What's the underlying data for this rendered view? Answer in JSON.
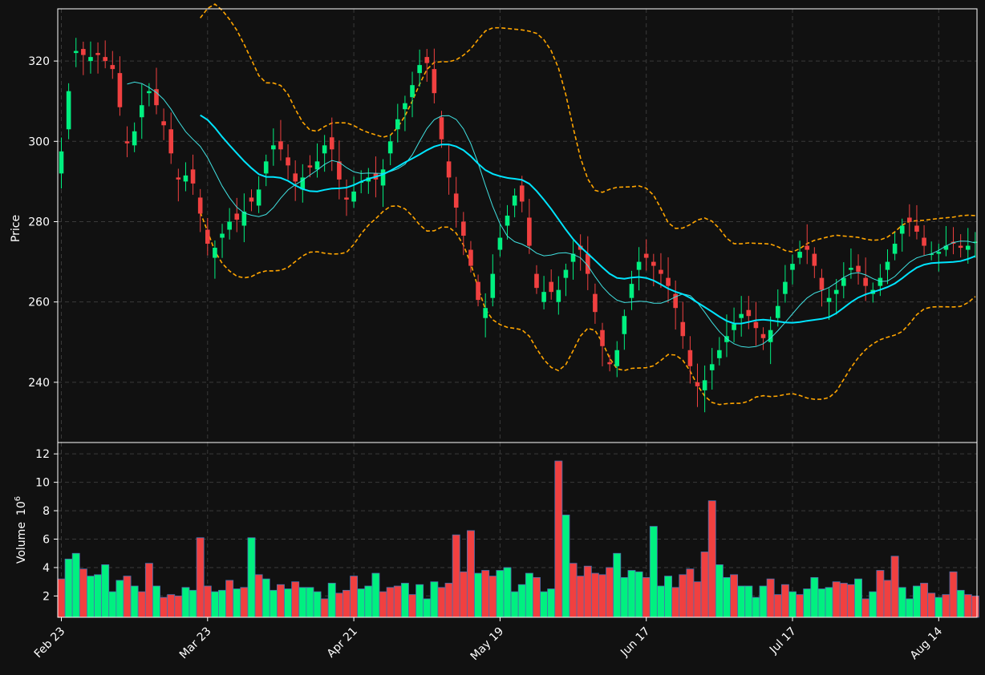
{
  "colors": {
    "background": "#111111",
    "up": "#00f080",
    "down": "#f04040",
    "volume_edge": "#4a6fae",
    "ma_fast": "#40e0e0",
    "ma_slow": "#00e5ff",
    "bands": "#ffa500",
    "grid": "#3a3a3a"
  },
  "chart_data": [
    {
      "type": "candlestick",
      "ylabel": "Price",
      "ylim": [
        225,
        333
      ],
      "y_ticks": [
        "240",
        "260",
        "280",
        "300",
        "320"
      ],
      "x_ticks": [
        "Feb 23",
        "Mar 23",
        "Apr 21",
        "May 19",
        "Jun 17",
        "Jul 17",
        "Aug 14"
      ],
      "x_tick_indices": [
        0,
        20,
        40,
        60,
        80,
        100,
        120
      ],
      "bar_count": 126,
      "grid": true,
      "overlays": [
        "moving average (fast)",
        "moving average (20)",
        "upper band",
        "lower band"
      ],
      "price_path": [
        [
          0,
          292
        ],
        [
          2,
          303
        ],
        [
          4,
          322
        ],
        [
          6,
          323
        ],
        [
          8,
          320
        ],
        [
          10,
          322
        ],
        [
          12,
          321
        ],
        [
          14,
          319
        ],
        [
          16,
          317
        ],
        [
          18,
          300
        ],
        [
          20,
          299
        ],
        [
          22,
          306
        ],
        [
          24,
          312
        ],
        [
          26,
          313
        ],
        [
          28,
          305
        ],
        [
          30,
          303
        ],
        [
          32,
          291
        ],
        [
          34,
          290
        ],
        [
          36,
          293
        ],
        [
          38,
          286
        ],
        [
          40,
          278
        ],
        [
          42,
          271
        ],
        [
          44,
          276
        ],
        [
          46,
          278
        ],
        [
          48,
          282
        ],
        [
          50,
          279
        ],
        [
          52,
          286
        ],
        [
          54,
          284
        ],
        [
          56,
          292
        ],
        [
          58,
          298
        ],
        [
          60,
          300
        ],
        [
          62,
          296
        ],
        [
          64,
          292
        ],
        [
          66,
          288
        ],
        [
          68,
          294
        ],
        [
          70,
          293
        ],
        [
          72,
          297
        ],
        [
          74,
          301
        ],
        [
          76,
          295
        ],
        [
          78,
          286
        ],
        [
          80,
          285
        ],
        [
          82,
          290
        ],
        [
          84,
          290
        ],
        [
          86,
          292
        ],
        [
          88,
          289
        ],
        [
          90,
          297
        ],
        [
          92,
          303
        ],
        [
          94,
          308
        ],
        [
          96,
          311
        ],
        [
          98,
          317
        ],
        [
          100,
          321
        ],
        [
          102,
          318
        ],
        [
          104,
          306
        ],
        [
          106,
          295
        ],
        [
          108,
          287
        ],
        [
          110,
          280
        ],
        [
          112,
          273
        ],
        [
          114,
          265
        ],
        [
          116,
          256
        ],
        [
          118,
          261
        ],
        [
          120,
          273
        ],
        [
          122,
          279
        ],
        [
          124,
          284
        ],
        [
          126,
          289
        ],
        [
          128,
          281
        ],
        [
          130,
          267
        ],
        [
          132,
          260
        ],
        [
          134,
          265
        ],
        [
          136,
          260
        ],
        [
          138,
          266
        ],
        [
          140,
          270
        ],
        [
          142,
          274
        ],
        [
          144,
          272
        ],
        [
          146,
          262
        ],
        [
          148,
          253
        ],
        [
          150,
          245
        ],
        [
          152,
          244
        ],
        [
          154,
          252
        ],
        [
          156,
          261
        ],
        [
          158,
          268
        ],
        [
          160,
          272
        ],
        [
          162,
          270
        ],
        [
          164,
          268
        ],
        [
          166,
          266
        ],
        [
          168,
          262
        ],
        [
          170,
          255
        ],
        [
          172,
          248
        ],
        [
          174,
          240
        ],
        [
          176,
          238
        ],
        [
          178,
          243
        ],
        [
          180,
          246
        ],
        [
          182,
          250
        ],
        [
          184,
          253
        ],
        [
          186,
          256
        ],
        [
          188,
          258
        ],
        [
          190,
          255
        ],
        [
          192,
          252
        ],
        [
          194,
          250
        ],
        [
          196,
          256
        ],
        [
          198,
          262
        ],
        [
          200,
          268
        ],
        [
          202,
          271
        ],
        [
          204,
          274
        ],
        [
          206,
          272
        ],
        [
          208,
          266
        ],
        [
          210,
          260
        ],
        [
          212,
          262
        ],
        [
          214,
          264
        ],
        [
          216,
          268
        ],
        [
          218,
          269
        ],
        [
          220,
          266
        ],
        [
          222,
          262
        ],
        [
          224,
          264
        ],
        [
          226,
          268
        ],
        [
          228,
          272
        ],
        [
          230,
          277
        ],
        [
          232,
          281
        ],
        [
          234,
          279
        ],
        [
          236,
          276
        ],
        [
          238,
          272
        ],
        [
          240,
          272
        ],
        [
          242,
          273
        ],
        [
          244,
          275
        ],
        [
          246,
          274
        ],
        [
          248,
          273
        ],
        [
          250,
          275
        ]
      ]
    },
    {
      "type": "bar",
      "ylabel": "Volume",
      "ylabel_exponent": "10",
      "ylabel_exponent_power": "6",
      "ylim": [
        0.5,
        12.8
      ],
      "y_ticks": [
        "2",
        "4",
        "6",
        "8",
        "10",
        "12"
      ],
      "x_ticks": [
        "Feb 23",
        "Mar 23",
        "Apr 21",
        "May 19",
        "Jun 17",
        "Jul 17",
        "Aug 14"
      ],
      "grid": true,
      "values": [
        3.2,
        4.6,
        5.0,
        3.9,
        3.4,
        3.5,
        4.2,
        2.3,
        3.1,
        3.4,
        2.7,
        2.3,
        4.3,
        2.7,
        1.9,
        2.1,
        2.0,
        2.6,
        2.4,
        6.1,
        2.7,
        2.3,
        2.4,
        3.1,
        2.5,
        2.6,
        6.1,
        3.5,
        3.2,
        2.4,
        2.8,
        2.5,
        3.0,
        2.6,
        2.6,
        2.3,
        1.8,
        2.9,
        2.2,
        2.4,
        3.4,
        2.5,
        2.7,
        3.6,
        2.3,
        2.6,
        2.7,
        2.9,
        2.1,
        2.8,
        1.8,
        3.0,
        2.6,
        2.9,
        6.3,
        3.7,
        6.6,
        3.6,
        3.8,
        3.4,
        3.8,
        4.0,
        2.3,
        2.8,
        3.6,
        3.3,
        2.3,
        2.5,
        11.5,
        7.7,
        4.3,
        3.4,
        4.1,
        3.6,
        3.5,
        4.0,
        5.0,
        3.3,
        3.8,
        3.7,
        3.3,
        6.9,
        2.7,
        3.4,
        2.6,
        3.5,
        3.9,
        3.0,
        5.1,
        8.7,
        4.2,
        3.3,
        3.5,
        2.7,
        2.7,
        1.9,
        2.7,
        3.2,
        2.1,
        2.8,
        2.3,
        2.1,
        2.5,
        3.3,
        2.5,
        2.6,
        3.0,
        2.9,
        2.8,
        3.2,
        1.8,
        2.3,
        3.8,
        3.1,
        4.8,
        2.6,
        1.8,
        2.7,
        2.9,
        2.2,
        1.9,
        2.1,
        3.7,
        2.4,
        2.1,
        2.0
      ],
      "directions": [
        "d",
        "u",
        "u",
        "d",
        "u",
        "u",
        "u",
        "u",
        "u",
        "d",
        "u",
        "d",
        "d",
        "u",
        "d",
        "d",
        "d",
        "u",
        "u",
        "d",
        "d",
        "u",
        "u",
        "d",
        "u",
        "d",
        "u",
        "d",
        "u",
        "u",
        "d",
        "u",
        "d",
        "u",
        "u",
        "u",
        "d",
        "u",
        "d",
        "d",
        "d",
        "u",
        "u",
        "u",
        "d",
        "d",
        "d",
        "u",
        "d",
        "u",
        "u",
        "u",
        "d",
        "d",
        "d",
        "d",
        "d",
        "u",
        "d",
        "d",
        "u",
        "u",
        "u",
        "u",
        "u",
        "d",
        "u",
        "u",
        "d",
        "u",
        "d",
        "d",
        "d",
        "d",
        "d",
        "d",
        "u",
        "u",
        "u",
        "u",
        "d",
        "u",
        "u",
        "u",
        "d",
        "d",
        "d",
        "d",
        "d",
        "d",
        "u",
        "u",
        "d",
        "u",
        "u",
        "u",
        "u",
        "d",
        "d",
        "d",
        "u",
        "d",
        "u",
        "u",
        "u",
        "u",
        "d",
        "d",
        "d",
        "u",
        "d",
        "u",
        "d",
        "d",
        "d",
        "u",
        "u",
        "u",
        "d",
        "d",
        "u",
        "d",
        "d",
        "u",
        "d",
        "d"
      ]
    }
  ]
}
